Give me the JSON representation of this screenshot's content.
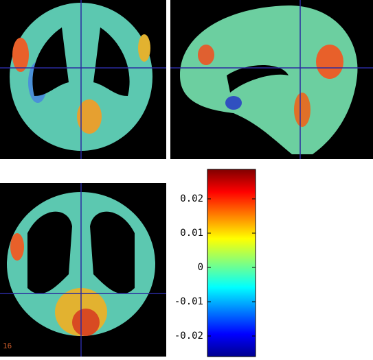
{
  "colorbar": {
    "colormap": "jet",
    "clim": [
      -0.026,
      0.0286
    ],
    "ticks": [
      0.02,
      0.01,
      0,
      -0.01,
      -0.02
    ]
  },
  "corner_label": "16"
}
